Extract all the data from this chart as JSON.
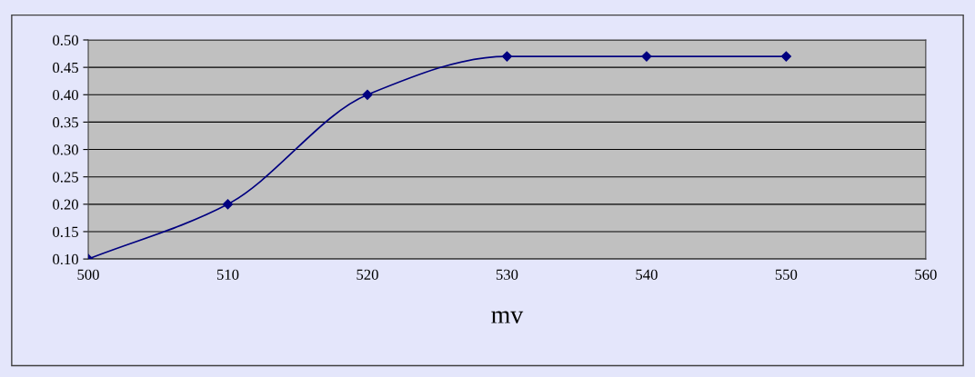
{
  "chart_data": {
    "type": "line",
    "xlabel": "mv",
    "x": [
      500,
      510,
      520,
      530,
      540,
      550
    ],
    "series": [
      {
        "color": "#000080",
        "values": [
          0.1,
          0.2,
          0.4,
          0.47,
          0.47,
          0.47
        ]
      }
    ],
    "xlim": [
      500,
      560
    ],
    "xticks": [
      500,
      510,
      520,
      530,
      540,
      550,
      560
    ],
    "ylim": [
      0.1,
      0.5
    ],
    "yticks": [
      {
        "value": 0.1,
        "label": "0.10"
      },
      {
        "value": 0.15,
        "label": "0.15"
      },
      {
        "value": 0.2,
        "label": "0.20"
      },
      {
        "value": 0.25,
        "label": "0.25"
      },
      {
        "value": 0.3,
        "label": "0.30"
      },
      {
        "value": 0.35,
        "label": "0.35"
      },
      {
        "value": 0.4,
        "label": "0.40"
      },
      {
        "value": 0.45,
        "label": "0.45"
      },
      {
        "value": 0.5,
        "label": "0.50"
      }
    ],
    "grid": "y",
    "marker": "diamond",
    "line_style": "solid",
    "legend": false
  }
}
